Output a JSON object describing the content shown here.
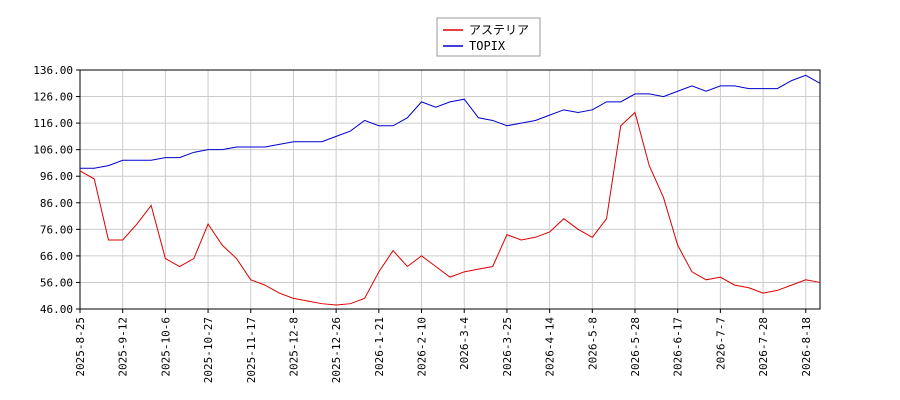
{
  "chart_data": {
    "type": "line",
    "x": [
      "2025-8-25",
      "2025-9-1",
      "2025-9-5",
      "2025-9-12",
      "2025-9-22",
      "2025-9-29",
      "2025-10-6",
      "2025-10-14",
      "2025-10-20",
      "2025-10-27",
      "2025-11-4",
      "2025-11-10",
      "2025-11-17",
      "2025-11-25",
      "2025-12-1",
      "2025-12-8",
      "2025-12-15",
      "2025-12-19",
      "2025-12-26",
      "2026-1-7",
      "2026-1-14",
      "2026-1-21",
      "2026-1-28",
      "2026-2-3",
      "2026-2-10",
      "2026-2-17",
      "2026-2-25",
      "2026-3-4",
      "2026-3-11",
      "2026-3-18",
      "2026-3-25",
      "2026-4-1",
      "2026-4-7",
      "2026-4-14",
      "2026-4-21",
      "2026-4-30",
      "2026-5-8",
      "2026-5-15",
      "2026-5-21",
      "2026-5-28",
      "2026-6-3",
      "2026-6-10",
      "2026-6-17",
      "2026-6-24",
      "2026-6-30",
      "2026-7-7",
      "2026-7-14",
      "2026-7-21",
      "2026-7-28",
      "2026-8-4",
      "2026-8-11",
      "2026-8-18",
      "2026-8-24"
    ],
    "xticks": [
      "2025-8-25",
      "2025-9-12",
      "2025-10-6",
      "2025-10-27",
      "2025-11-17",
      "2025-12-8",
      "2025-12-26",
      "2026-1-21",
      "2026-2-10",
      "2026-3-4",
      "2026-3-25",
      "2026-4-14",
      "2026-5-8",
      "2026-5-28",
      "2026-6-17",
      "2026-7-7",
      "2026-7-28",
      "2026-8-18"
    ],
    "series": [
      {
        "name": "アステリア",
        "color": "#dd0000",
        "values": [
          98,
          95,
          72,
          72,
          78,
          85,
          65,
          62,
          65,
          78,
          70,
          65,
          57,
          55,
          52,
          50,
          49,
          48,
          47.5,
          48,
          50,
          60,
          68,
          62,
          66,
          62,
          58,
          60,
          61,
          62,
          74,
          72,
          73,
          75,
          80,
          76,
          73,
          80,
          115,
          120,
          100,
          88,
          70,
          60,
          57,
          58,
          55,
          54,
          52,
          53,
          55,
          57,
          56
        ]
      },
      {
        "name": "TOPIX",
        "color": "#0000cc",
        "values": [
          99,
          99,
          100,
          102,
          102,
          102,
          103,
          103,
          105,
          106,
          106,
          107,
          107,
          107,
          108,
          109,
          109,
          109,
          111,
          113,
          117,
          115,
          115,
          118,
          124,
          122,
          124,
          125,
          118,
          117,
          115,
          116,
          117,
          119,
          121,
          120,
          121,
          124,
          124,
          127,
          127,
          126,
          128,
          130,
          128,
          130,
          130,
          129,
          129,
          129,
          132,
          134,
          131
        ]
      }
    ],
    "ylim": [
      46,
      136
    ],
    "yticks": [
      {
        "value": 46,
        "label": "46.00"
      },
      {
        "value": 56,
        "label": "56.00"
      },
      {
        "value": 66,
        "label": "66.00"
      },
      {
        "value": 76,
        "label": "76.00"
      },
      {
        "value": 86,
        "label": "86.00"
      },
      {
        "value": 96,
        "label": "96.00"
      },
      {
        "value": 106,
        "label": "106.00"
      },
      {
        "value": 116,
        "label": "116.00"
      },
      {
        "value": 126,
        "label": "126.00"
      },
      {
        "value": 136,
        "label": "136.00"
      }
    ],
    "grid": true
  }
}
